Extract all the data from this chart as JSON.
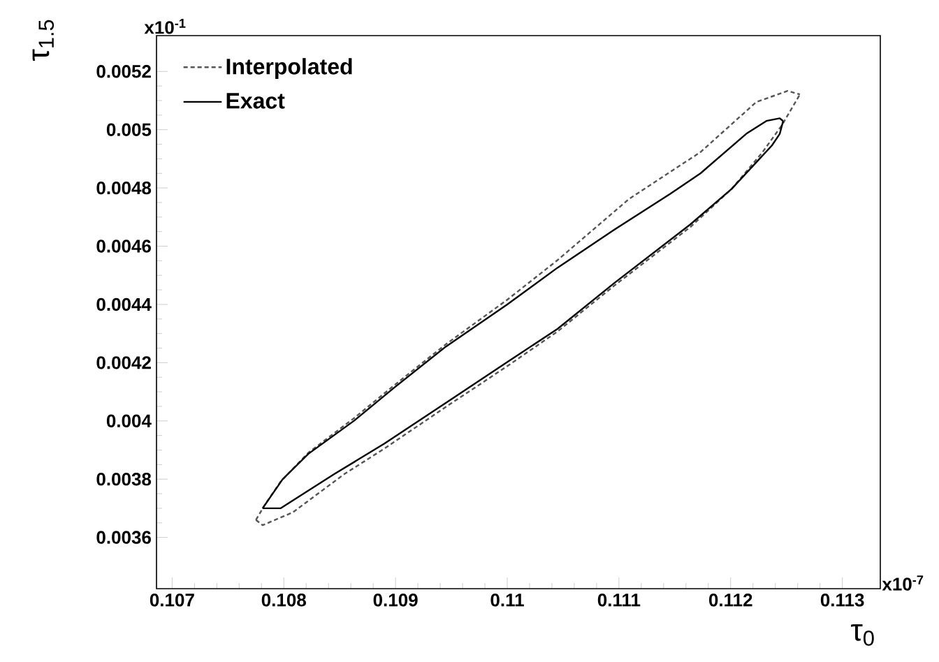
{
  "chart_data": {
    "type": "line",
    "xlabel": "τ$_{0}$",
    "ylabel": "τ$_{1.5}$",
    "annotations": [
      "x10$^{-1}$",
      "x10$^{-7}$"
    ],
    "legend": "top left",
    "xlim": [
      0.10686,
      0.11334
    ],
    "ylim": [
      0.003424,
      0.005323
    ],
    "xticks": [
      0.107,
      0.108,
      0.109,
      0.11,
      0.111,
      0.112,
      0.113
    ],
    "yticks": [
      0.0036,
      0.0038,
      0.004,
      0.0042,
      0.0044,
      0.0046,
      0.0048,
      0.005,
      0.0052
    ],
    "series": [
      {
        "name": "Interpolated",
        "color": "#555555",
        "line_style": "dashed",
        "x": [
          0.10775,
          0.10783,
          0.10797,
          0.10822,
          0.10863,
          0.10899,
          0.10945,
          0.11,
          0.11045,
          0.11109,
          0.11173,
          0.11223,
          0.11251,
          0.11262
        ],
        "values": [
          0.00366,
          0.003712,
          0.003791,
          0.003891,
          0.00401,
          0.004123,
          0.004263,
          0.004416,
          0.004552,
          0.004762,
          0.004923,
          0.005095,
          0.005133,
          0.005121
        ]
      },
      {
        "color": "#555555",
        "line_style": "dashed",
        "x": [
          0.10775,
          0.10781,
          0.10808,
          0.10854,
          0.1089,
          0.10945,
          0.11,
          0.11045,
          0.11096,
          0.11164,
          0.11201,
          0.11228,
          0.11246,
          0.11262
        ],
        "values": [
          0.00366,
          0.003642,
          0.003686,
          0.003817,
          0.003905,
          0.004048,
          0.004188,
          0.004307,
          0.004465,
          0.004666,
          0.004797,
          0.00492,
          0.005016,
          0.005121
        ]
      },
      {
        "name": "Exact",
        "color": "#000000",
        "line_style": "solid",
        "x": [
          0.10781,
          0.10799,
          0.10822,
          0.10863,
          0.10899,
          0.10945,
          0.11,
          0.11045,
          0.11096,
          0.11146,
          0.11173,
          0.11214,
          0.11232,
          0.11244,
          0.11247
        ],
        "values": [
          0.0037,
          0.0038,
          0.003887,
          0.004001,
          0.004115,
          0.004255,
          0.0044,
          0.004526,
          0.004657,
          0.00478,
          0.00485,
          0.004986,
          0.00503,
          0.005039,
          0.00503
        ]
      },
      {
        "color": "#000000",
        "line_style": "solid",
        "x": [
          0.10781,
          0.10797,
          0.10845,
          0.1089,
          0.10945,
          0.11,
          0.11045,
          0.11096,
          0.11164,
          0.11201,
          0.11223,
          0.11237,
          0.11244,
          0.11247
        ],
        "values": [
          0.0037,
          0.0037,
          0.003817,
          0.003922,
          0.004062,
          0.004202,
          0.004316,
          0.004474,
          0.004675,
          0.004797,
          0.004888,
          0.004946,
          0.004986,
          0.00503
        ]
      }
    ]
  }
}
